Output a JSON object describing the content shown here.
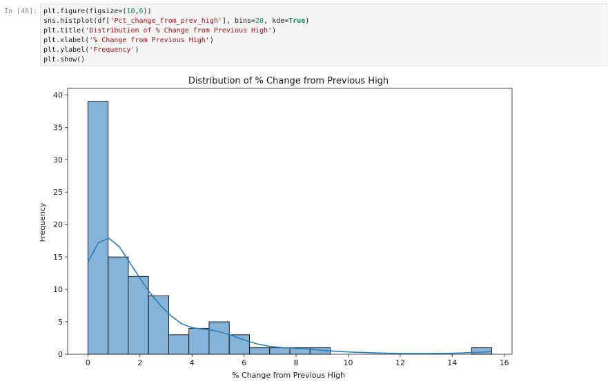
{
  "cell": {
    "prompt": "In [46]:",
    "code_lines": [
      [
        {
          "t": "plt.figure(figsize=("
        },
        {
          "t": "10",
          "c": "num"
        },
        {
          "t": ","
        },
        {
          "t": "6",
          "c": "num"
        },
        {
          "t": "))"
        }
      ],
      [
        {
          "t": "sns.histplot(df["
        },
        {
          "t": "'Pct_change_from_prev_high'",
          "c": "str"
        },
        {
          "t": "], bins="
        },
        {
          "t": "20",
          "c": "num"
        },
        {
          "t": ", kde="
        },
        {
          "t": "True",
          "c": "kw"
        },
        {
          "t": ")"
        }
      ],
      [
        {
          "t": "plt.title("
        },
        {
          "t": "'Distribution of % Change from Previous High'",
          "c": "str"
        },
        {
          "t": ")"
        }
      ],
      [
        {
          "t": "plt.xlabel("
        },
        {
          "t": "'% Change from Previous High'",
          "c": "str"
        },
        {
          "t": ")"
        }
      ],
      [
        {
          "t": "plt.ylabel("
        },
        {
          "t": "'Frequency'",
          "c": "str"
        },
        {
          "t": ")"
        }
      ],
      [
        {
          "t": "plt.show()"
        }
      ]
    ]
  },
  "chart_data": {
    "type": "bar",
    "title": "Distribution of % Change from Previous High",
    "xlabel": "% Change from Previous High",
    "ylabel": "Frequency",
    "xlim": [
      -0.78,
      16.3
    ],
    "ylim": [
      0,
      41
    ],
    "xticks": [
      0,
      2,
      4,
      6,
      8,
      10,
      12,
      14,
      16
    ],
    "yticks": [
      0,
      5,
      10,
      15,
      20,
      25,
      30,
      35,
      40
    ],
    "bin_edges": [
      0,
      0.776,
      1.552,
      2.328,
      3.104,
      3.88,
      4.656,
      5.432,
      6.208,
      6.984,
      7.76,
      8.536,
      9.312,
      10.088,
      10.864,
      11.64,
      12.416,
      13.192,
      13.968,
      14.744,
      15.52
    ],
    "counts": [
      39,
      15,
      12,
      9,
      3,
      4,
      5,
      3,
      1,
      1,
      1,
      1,
      0,
      0,
      0,
      0,
      0,
      0,
      0,
      1
    ],
    "kde": {
      "x": [
        0,
        0.4,
        0.8,
        1.2,
        1.6,
        2.0,
        2.4,
        2.8,
        3.2,
        3.6,
        4.0,
        4.4,
        4.8,
        5.2,
        5.6,
        6.0,
        6.5,
        7.0,
        7.5,
        8.0,
        8.5,
        9.0,
        10.0,
        11.0,
        12.0,
        13.0,
        14.0,
        14.5,
        15.0,
        15.52
      ],
      "y": [
        14.2,
        17.2,
        17.9,
        16.6,
        14.2,
        11.7,
        9.4,
        7.5,
        5.9,
        4.7,
        4.1,
        3.9,
        3.7,
        3.3,
        2.8,
        2.2,
        1.6,
        1.2,
        1.0,
        0.9,
        0.8,
        0.6,
        0.35,
        0.2,
        0.12,
        0.1,
        0.15,
        0.2,
        0.3,
        0.4
      ]
    },
    "bar_color": "#86b4d8",
    "bar_edge_color": "#1a1a1a",
    "kde_color": "#2b7bba",
    "grid": false
  }
}
